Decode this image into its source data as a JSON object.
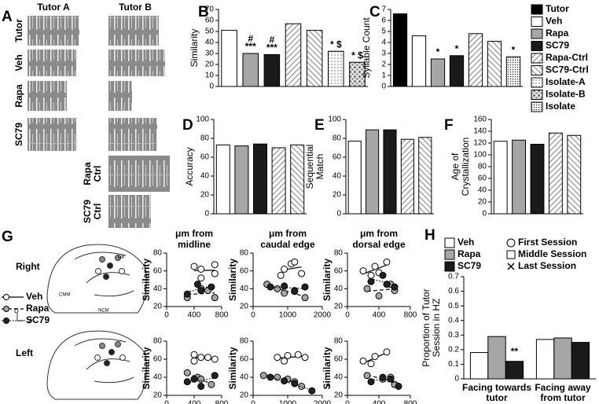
{
  "panel_a": {
    "label": "A",
    "columns": [
      "Tutor A",
      "Tutor B"
    ],
    "rows": [
      "Tutor",
      "Veh",
      "Rapa",
      "SC79"
    ],
    "control_rows": [
      [
        "Rapa",
        "Ctrl"
      ],
      [
        "SC79",
        "Ctrl"
      ]
    ]
  },
  "legend": [
    {
      "name": "Tutor",
      "color": "#000000",
      "pattern": null
    },
    {
      "name": "Veh",
      "color": "#ffffff",
      "pattern": null
    },
    {
      "name": "Rapa",
      "color": "#a6a6a6",
      "pattern": null
    },
    {
      "name": "SC79",
      "color": "#1a1a1a",
      "pattern": null
    },
    {
      "name": "Rapa-Ctrl",
      "color": "#ffffff",
      "pattern": "hatch"
    },
    {
      "name": "SC79-Ctrl",
      "color": "#ffffff",
      "pattern": "hatch2"
    },
    {
      "name": "Isolate-A",
      "color": "#ffffff",
      "pattern": "dots"
    },
    {
      "name": "Isolate-B",
      "color": "#ffffff",
      "pattern": "mottle"
    },
    {
      "name": "Isolate",
      "color": "#ffffff",
      "pattern": "dots2"
    }
  ],
  "panel_g": {
    "label": "G",
    "rows": [
      "Right",
      "Left"
    ],
    "diagram_labels": [
      "HP",
      "CMM",
      "NCM"
    ],
    "axis_labels": [
      "D",
      "P"
    ],
    "legend": [
      {
        "name": "Veh",
        "color": "#ffffff",
        "dash": "solid"
      },
      {
        "name": "Rapa",
        "color": "#a6a6a6",
        "dash": "dashed"
      },
      {
        "name": "SC79",
        "color": "#222222",
        "dash": "dotted"
      }
    ]
  },
  "chart_data": [
    {
      "type": "bar",
      "label": "B",
      "ylabel": [
        "Similarity"
      ],
      "categories": [
        "Veh",
        "Rapa",
        "SC79",
        "Rapa-Ctrl",
        "SC79-Ctrl",
        "Isolate-A",
        "Isolate-B"
      ],
      "values": [
        51,
        30,
        29,
        57,
        51,
        32,
        22
      ],
      "annotations": [
        null,
        [
          "#",
          "***"
        ],
        [
          "#",
          "***"
        ],
        null,
        null,
        [
          "* $"
        ],
        [
          "* $"
        ]
      ],
      "ylim": [
        0,
        70
      ],
      "yticks": [
        0,
        10,
        20,
        30,
        40,
        50,
        60,
        70
      ]
    },
    {
      "type": "bar",
      "label": "C",
      "ylabel": [
        "Syllable Count"
      ],
      "categories": [
        "Tutor",
        "Veh",
        "Rapa",
        "SC79",
        "Rapa-Ctrl",
        "SC79-Ctrl",
        "Isolate"
      ],
      "values": [
        6.6,
        4.6,
        2.5,
        2.8,
        4.8,
        4.1,
        2.7
      ],
      "annotations": [
        null,
        null,
        [
          "*"
        ],
        [
          "*"
        ],
        null,
        null,
        [
          "*"
        ]
      ],
      "ylim": [
        0,
        7
      ],
      "yticks": [
        0,
        1,
        2,
        3,
        4,
        5,
        6,
        7
      ]
    },
    {
      "type": "bar",
      "label": "D",
      "ylabel": [
        "Accuracy"
      ],
      "categories": [
        "Veh",
        "Rapa",
        "SC79",
        "Rapa-Ctrl",
        "SC79-Ctrl"
      ],
      "values": [
        73,
        72,
        74,
        70,
        73
      ],
      "ylim": [
        0,
        100
      ],
      "yticks": [
        0,
        20,
        40,
        60,
        80,
        100
      ]
    },
    {
      "type": "bar",
      "label": "E",
      "ylabel": [
        "Sequential",
        "Match"
      ],
      "categories": [
        "Veh",
        "Rapa",
        "SC79",
        "Rapa-Ctrl",
        "SC79-Ctrl"
      ],
      "values": [
        77,
        89,
        89,
        79,
        81
      ],
      "ylim": [
        0,
        100
      ],
      "yticks": [
        0,
        20,
        40,
        60,
        80,
        100
      ]
    },
    {
      "type": "bar",
      "label": "F",
      "ylabel": [
        "Age of",
        "Crystallization"
      ],
      "categories": [
        "Veh",
        "Rapa",
        "SC79",
        "Rapa-Ctrl",
        "SC79-Ctrl"
      ],
      "values": [
        123,
        125,
        118,
        137,
        133
      ],
      "ylim": [
        0,
        160
      ],
      "yticks": [
        0,
        20,
        40,
        60,
        80,
        100,
        120,
        140,
        160
      ]
    },
    {
      "type": "scatter",
      "title": [
        "μm from",
        "midline"
      ],
      "ylabel": "Similarity",
      "xlim": [
        0,
        800
      ],
      "xticks": [
        0,
        400,
        800
      ],
      "ylim": [
        20,
        80
      ],
      "yticks": [
        20,
        40,
        60,
        80
      ],
      "series": [
        {
          "color": "#ffffff",
          "dash": "solid",
          "x": [
            400,
            500,
            700,
            500,
            700
          ],
          "y": [
            65,
            62,
            67,
            52,
            57
          ]
        },
        {
          "color": "#a6a6a6",
          "dash": "dashed",
          "x": [
            300,
            500,
            600,
            700
          ],
          "y": [
            30,
            40,
            38,
            30
          ]
        },
        {
          "color": "#222222",
          "dash": "dotted",
          "x": [
            300,
            450,
            500,
            650
          ],
          "y": [
            34,
            45,
            38,
            42
          ]
        }
      ]
    },
    {
      "type": "scatter",
      "title": [
        "μm from",
        "caudal edge"
      ],
      "ylabel": "Similarity",
      "xlim": [
        0,
        2000
      ],
      "xticks": [
        0,
        1000,
        2000
      ],
      "ylim": [
        20,
        80
      ],
      "yticks": [
        20,
        40,
        60,
        80
      ],
      "series": [
        {
          "color": "#ffffff",
          "dash": "solid",
          "x": [
            900,
            1100,
            1200,
            800,
            1400
          ],
          "y": [
            62,
            68,
            70,
            55,
            57
          ]
        },
        {
          "color": "#a6a6a6",
          "dash": "dashed",
          "x": [
            400,
            700,
            900,
            1200,
            1500
          ],
          "y": [
            45,
            40,
            35,
            38,
            30
          ]
        },
        {
          "color": "#222222",
          "dash": "dotted",
          "x": [
            500,
            900,
            1200,
            1500
          ],
          "y": [
            42,
            43,
            37,
            42
          ]
        }
      ]
    },
    {
      "type": "scatter",
      "title": [
        "μm from",
        "dorsal edge"
      ],
      "ylabel": "Similarity",
      "xlim": [
        0,
        800
      ],
      "xticks": [
        0,
        400,
        800
      ],
      "ylim": [
        20,
        80
      ],
      "yticks": [
        20,
        40,
        60,
        80
      ],
      "series": [
        {
          "color": "#ffffff",
          "dash": "solid",
          "x": [
            200,
            350,
            500,
            300,
            400
          ],
          "y": [
            60,
            65,
            70,
            55,
            58
          ]
        },
        {
          "color": "#a6a6a6",
          "dash": "dashed",
          "x": [
            250,
            400,
            550,
            600
          ],
          "y": [
            40,
            32,
            45,
            38
          ]
        },
        {
          "color": "#222222",
          "dash": "dotted",
          "x": [
            300,
            450,
            500,
            600
          ],
          "y": [
            48,
            55,
            45,
            42
          ]
        }
      ]
    },
    {
      "type": "scatter",
      "ylabel": "Similarity",
      "xlim": [
        0,
        800
      ],
      "xticks": [
        0,
        400,
        800
      ],
      "ylim": [
        20,
        80
      ],
      "yticks": [
        20,
        40,
        60,
        80
      ],
      "series": [
        {
          "color": "#ffffff",
          "dash": "solid",
          "x": [
            400,
            500,
            600,
            400,
            700
          ],
          "y": [
            65,
            62,
            62,
            58,
            60
          ]
        },
        {
          "color": "#a6a6a6",
          "dash": "dashed",
          "x": [
            300,
            450,
            500,
            650
          ],
          "y": [
            45,
            40,
            38,
            32
          ]
        },
        {
          "color": "#222222",
          "dash": "dotted",
          "x": [
            300,
            400,
            500,
            700
          ],
          "y": [
            35,
            38,
            30,
            42
          ]
        }
      ]
    },
    {
      "type": "scatter",
      "ylabel": "Similarity",
      "xlim": [
        0,
        2000
      ],
      "xticks": [
        0,
        1000,
        2000
      ],
      "ylim": [
        20,
        80
      ],
      "yticks": [
        20,
        40,
        60,
        80
      ],
      "annotation": "*",
      "series": [
        {
          "color": "#ffffff",
          "dash": "solid",
          "x": [
            700,
            1000,
            1300,
            900,
            1500
          ],
          "y": [
            62,
            64,
            65,
            58,
            62
          ]
        },
        {
          "color": "#a6a6a6",
          "dash": "dashed",
          "x": [
            300,
            700,
            1000,
            1200,
            1400
          ],
          "y": [
            42,
            40,
            38,
            35,
            30
          ]
        },
        {
          "color": "#222222",
          "dash": "dotted",
          "x": [
            500,
            900,
            1200,
            1700
          ],
          "y": [
            40,
            36,
            33,
            25
          ]
        }
      ]
    },
    {
      "type": "scatter",
      "ylabel": "Similarity",
      "xlim": [
        0,
        800
      ],
      "xticks": [
        0,
        400,
        800
      ],
      "ylim": [
        20,
        80
      ],
      "yticks": [
        20,
        40,
        60,
        80
      ],
      "series": [
        {
          "color": "#ffffff",
          "dash": "solid",
          "x": [
            200,
            350,
            500,
            300
          ],
          "y": [
            58,
            63,
            68,
            55
          ]
        },
        {
          "color": "#a6a6a6",
          "dash": "dashed",
          "x": [
            250,
            450,
            550,
            600
          ],
          "y": [
            42,
            38,
            40,
            32
          ]
        },
        {
          "color": "#222222",
          "dash": "dotted",
          "x": [
            300,
            450,
            550,
            650
          ],
          "y": [
            35,
            40,
            38,
            30
          ]
        }
      ]
    },
    {
      "type": "groupbar",
      "label": "H",
      "ylabel": [
        "Proportion of Tutor",
        "Session in HZ"
      ],
      "categories": [
        [
          "Facing towards",
          "tutor"
        ],
        [
          "Facing away",
          "from tutor"
        ]
      ],
      "marker_legend": [
        "First Session",
        "Middle Session",
        "Last Session"
      ],
      "ylim": [
        0,
        0.7
      ],
      "yticks": [
        0,
        0.1,
        0.2,
        0.3,
        0.4,
        0.5,
        0.6,
        0.7
      ],
      "series": [
        {
          "name": "Veh",
          "color": "#ffffff",
          "values": [
            0.18,
            0.27
          ]
        },
        {
          "name": "Rapa",
          "color": "#a6a6a6",
          "values": [
            0.29,
            0.28
          ]
        },
        {
          "name": "SC79",
          "color": "#1a1a1a",
          "values": [
            0.12,
            0.25
          ],
          "annotations": [
            [
              "**"
            ],
            null
          ]
        }
      ]
    }
  ]
}
